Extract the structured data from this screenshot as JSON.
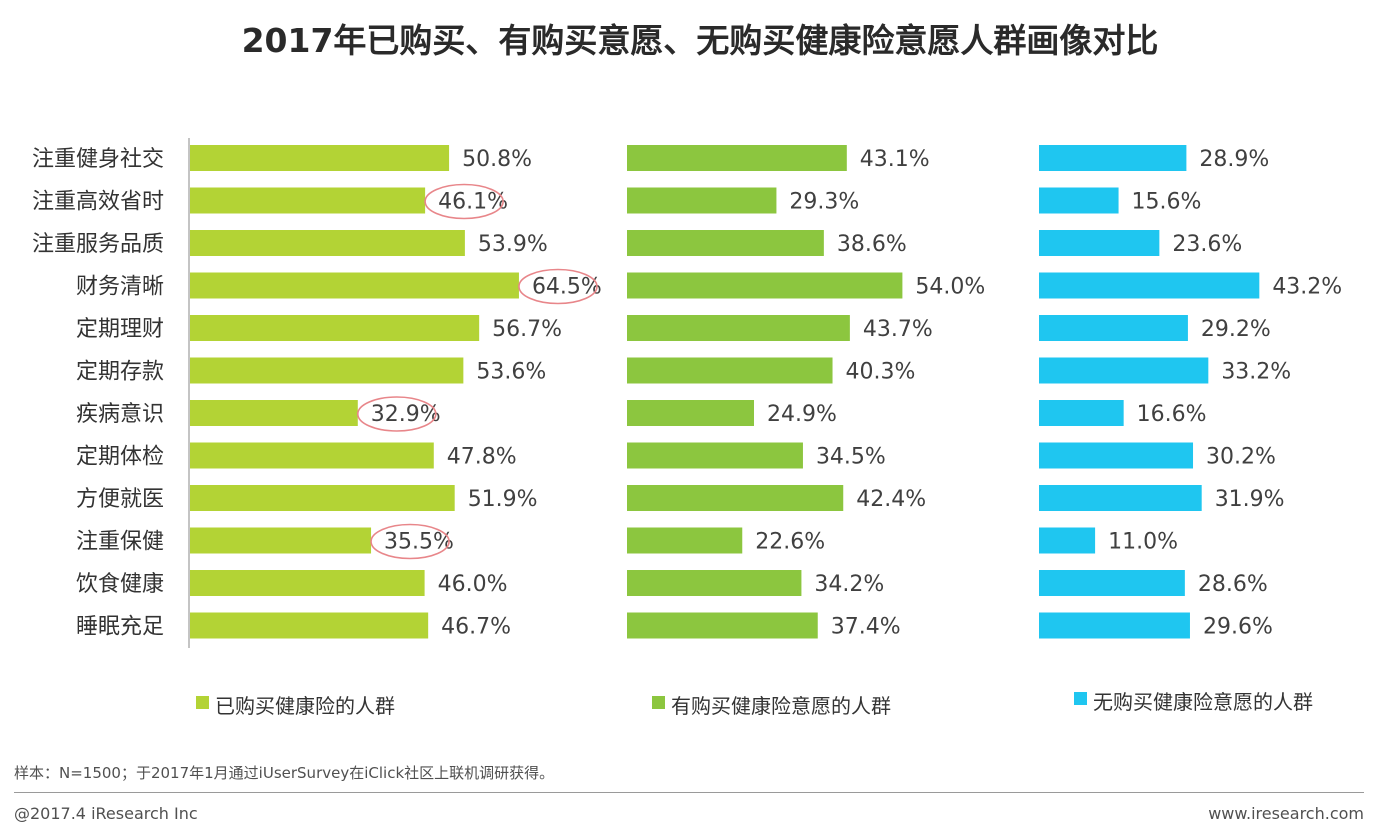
{
  "title": "2017年已购买、有购买意愿、无购买健康险意愿人群画像对比",
  "note": "样本：N=1500；于2017年1月通过iUserSurvey在iClick社区上联机调研获得。",
  "footer": {
    "copyright": "@2017.4 iResearch Inc",
    "website": "www.iresearch.com"
  },
  "colors": {
    "series1": "#b3d335",
    "series2": "#8cc63f",
    "series3": "#1fc6f0",
    "highlight_circle": "#e8868a"
  },
  "chart_data": {
    "type": "bar",
    "orientation": "horizontal",
    "categories": [
      "注重健身社交",
      "注重高效省时",
      "注重服务品质",
      "财务清晰",
      "定期理财",
      "定期存款",
      "疾病意识",
      "定期体检",
      "方便就医",
      "注重保健",
      "饮食健康",
      "睡眠充足"
    ],
    "series": [
      {
        "name": "已购买健康险的人群",
        "color": "#b3d335",
        "values": [
          50.8,
          46.1,
          53.9,
          64.5,
          56.7,
          53.6,
          32.9,
          47.8,
          51.9,
          35.5,
          46.0,
          46.7
        ],
        "labels": [
          "50.8%",
          "46.1%",
          "53.9%",
          "64.5%",
          "56.7%",
          "53.6%",
          "32.9%",
          "47.8%",
          "51.9%",
          "35.5%",
          "46.0%",
          "46.7%"
        ],
        "highlighted": [
          "注重高效省时",
          "财务清晰",
          "疾病意识",
          "注重保健"
        ]
      },
      {
        "name": "有购买健康险意愿的人群",
        "color": "#8cc63f",
        "values": [
          43.1,
          29.3,
          38.6,
          54.0,
          43.7,
          40.3,
          24.9,
          34.5,
          42.4,
          22.6,
          34.2,
          37.4
        ],
        "labels": [
          "43.1%",
          "29.3%",
          "38.6%",
          "54.0%",
          "43.7%",
          "40.3%",
          "24.9%",
          "34.5%",
          "42.4%",
          "22.6%",
          "34.2%",
          "37.4%"
        ]
      },
      {
        "name": "无购买健康险意愿的人群",
        "color": "#1fc6f0",
        "values": [
          28.9,
          15.6,
          23.6,
          43.2,
          29.2,
          33.2,
          16.6,
          30.2,
          31.9,
          11.0,
          28.6,
          29.6
        ],
        "labels": [
          "28.9%",
          "15.6%",
          "23.6%",
          "43.2%",
          "29.2%",
          "33.2%",
          "16.6%",
          "30.2%",
          "31.9%",
          "11.0%",
          "28.6%",
          "29.6%"
        ]
      }
    ],
    "unit": "%",
    "legend_position": "bottom",
    "grid": false
  }
}
